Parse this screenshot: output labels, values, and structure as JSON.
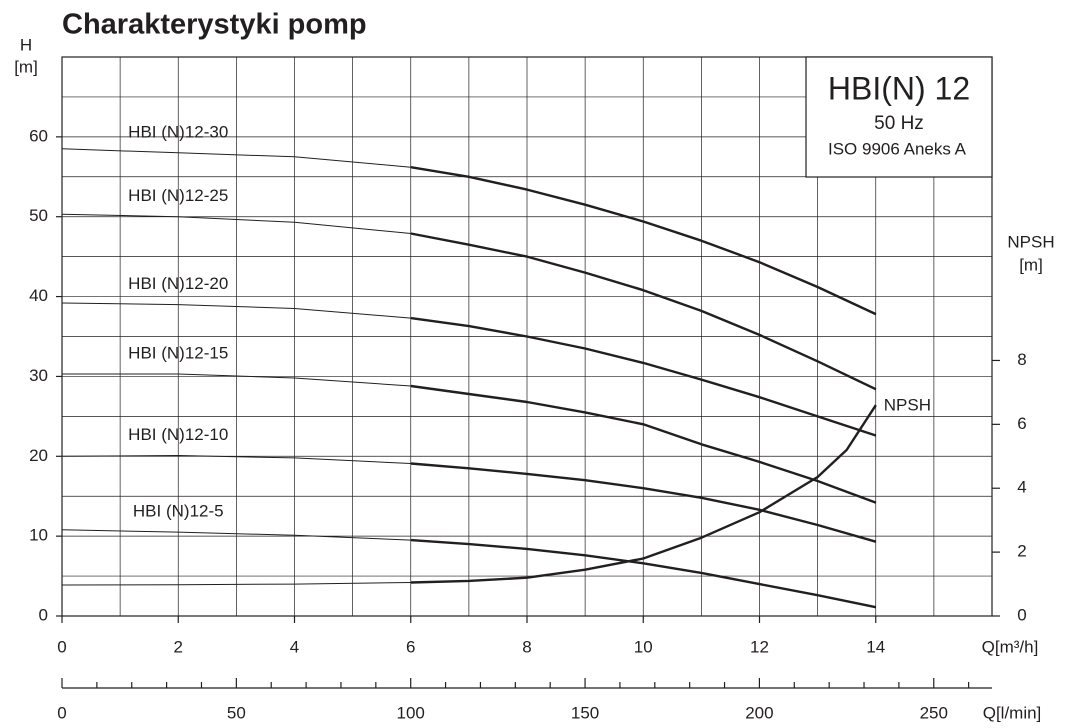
{
  "chart_data": {
    "type": "line",
    "title": "Charakterystyki pomp",
    "box": {
      "title": "HBI(N) 12",
      "frequency": "50 Hz",
      "standard": "ISO 9906 Aneks  A"
    },
    "y_label": "H",
    "y_unit": "[m]",
    "y2_label": "NPSH",
    "y2_unit": "[m]",
    "x_label": "Q[m³/h]",
    "x2_label": "Q[l/min]",
    "x": [
      0,
      2,
      4,
      6,
      7,
      8,
      9,
      10,
      11,
      12,
      13,
      14
    ],
    "xlim": [
      0,
      16
    ],
    "xticks": [
      0,
      2,
      4,
      6,
      8,
      10,
      12,
      14
    ],
    "xgrid": [
      1,
      2,
      3,
      4,
      5,
      6,
      7,
      8,
      9,
      10,
      11,
      12,
      13,
      14,
      15
    ],
    "ylim": [
      0,
      70
    ],
    "yticks": [
      0,
      10,
      20,
      30,
      40,
      50,
      60
    ],
    "ygrid": [
      5,
      10,
      15,
      20,
      25,
      30,
      35,
      40,
      45,
      50,
      55,
      60,
      65
    ],
    "y2lim": [
      0,
      17.5
    ],
    "y2ticks": [
      0,
      2,
      4,
      6,
      8
    ],
    "x2lim": [
      0,
      266.7
    ],
    "x2ticks": [
      0,
      50,
      100,
      150,
      200,
      250
    ],
    "x2minor": [
      10,
      20,
      30,
      40,
      60,
      70,
      80,
      90,
      110,
      120,
      130,
      140,
      160,
      170,
      180,
      190,
      210,
      220,
      230,
      240,
      260
    ],
    "grid": true,
    "operating_range": [
      6,
      14
    ],
    "series": [
      {
        "name": "HBI (N)12-30",
        "color": "#231f20",
        "values": [
          58.5,
          58.0,
          57.5,
          56.2,
          55.0,
          53.4,
          51.5,
          49.4,
          47.0,
          44.3,
          41.2,
          37.8
        ]
      },
      {
        "name": "HBI (N)12-25",
        "color": "#231f20",
        "values": [
          50.3,
          50.0,
          49.3,
          47.9,
          46.5,
          45.0,
          43.0,
          40.8,
          38.2,
          35.2,
          31.9,
          28.4
        ]
      },
      {
        "name": "HBI (N)12-20",
        "color": "#231f20",
        "values": [
          39.2,
          39.0,
          38.5,
          37.3,
          36.3,
          35.0,
          33.5,
          31.7,
          29.6,
          27.4,
          25.0,
          22.6
        ]
      },
      {
        "name": "HBI (N)12-15",
        "color": "#231f20",
        "values": [
          30.3,
          30.3,
          29.8,
          28.8,
          27.8,
          26.8,
          25.5,
          24.0,
          21.5,
          19.3,
          16.9,
          14.2
        ]
      },
      {
        "name": "HBI (N)12-10",
        "color": "#231f20",
        "values": [
          20.0,
          20.1,
          19.8,
          19.1,
          18.5,
          17.8,
          17.0,
          16.0,
          14.8,
          13.3,
          11.4,
          9.3
        ]
      },
      {
        "name": "HBI (N)12-5",
        "color": "#231f20",
        "values": [
          10.8,
          10.5,
          10.1,
          9.5,
          9.0,
          8.4,
          7.6,
          6.6,
          5.4,
          4.0,
          2.6,
          1.1
        ]
      },
      {
        "name": "NPSH",
        "color": "#231f20",
        "axis": "y2",
        "x": [
          0,
          2,
          4,
          6,
          7,
          8,
          9,
          10,
          11,
          12,
          13,
          13.5,
          14
        ],
        "values": [
          0.97,
          0.98,
          1.0,
          1.05,
          1.1,
          1.2,
          1.45,
          1.8,
          2.45,
          3.25,
          4.35,
          5.2,
          6.6
        ]
      }
    ]
  }
}
